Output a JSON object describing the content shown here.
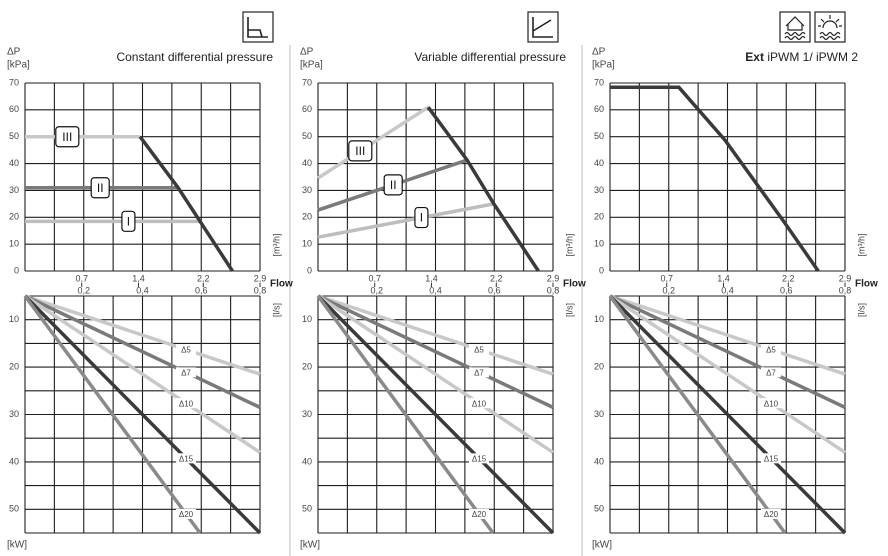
{
  "chart_data": [
    {
      "type": "line",
      "title": "Constant differential pressure",
      "ylabel": "ΔP",
      "yunit": "[kPa]",
      "xlabel": "Flow",
      "xunit": "[m³/h]",
      "x2unit": "[l/s]",
      "xlim": [
        0,
        2.9
      ],
      "xticks": [
        {
          "value": 0.7,
          "label": "0,7"
        },
        {
          "value": 1.4,
          "label": "1,4"
        },
        {
          "value": 2.2,
          "label": "2,2"
        },
        {
          "value": 2.9,
          "label": "2,9"
        }
      ],
      "x2lim": [
        0,
        0.8
      ],
      "x2ticks": [
        {
          "value": 0.2,
          "label": "0,2"
        },
        {
          "value": 0.4,
          "label": "0,4"
        },
        {
          "value": 0.6,
          "label": "0,6"
        },
        {
          "value": 0.8,
          "label": "0,8"
        }
      ],
      "xgrid": [
        0,
        0.3625,
        0.725,
        1.0875,
        1.45,
        1.8125,
        2.175,
        2.5375,
        2.9
      ],
      "ylim": [
        0,
        70
      ],
      "yticks": [
        0,
        10,
        20,
        30,
        40,
        50,
        60,
        70
      ],
      "series": [
        {
          "name": "III",
          "color": "#c8c8c8",
          "x": [
            0,
            1.42
          ],
          "values": [
            50,
            50
          ]
        },
        {
          "name": "II",
          "color": "#7a7a7a",
          "x": [
            0,
            1.89
          ],
          "values": [
            31,
            31
          ]
        },
        {
          "name": "I",
          "color": "#bdbdbd",
          "x": [
            0,
            2.16
          ],
          "values": [
            18.5,
            18.5
          ]
        },
        {
          "color": "#3a3a3a",
          "x": [
            1.42,
            1.89,
            2.16,
            2.56
          ],
          "values": [
            50,
            31,
            18.5,
            0
          ]
        }
      ]
    },
    {
      "type": "line",
      "ylabel": "[kW]",
      "xlim": [
        0,
        2.9
      ],
      "xgrid": [
        0,
        0.3625,
        0.725,
        1.0875,
        1.45,
        1.8125,
        2.175,
        2.5375,
        2.9
      ],
      "ylim": [
        5,
        55
      ],
      "y_inverted": true,
      "yticks": [
        10,
        20,
        30,
        40,
        50
      ],
      "ygrid": [
        5,
        10,
        15,
        20,
        25,
        30,
        35,
        40,
        45,
        50,
        55
      ],
      "series": [
        {
          "name": "Δ5",
          "color": "#c8c8c8",
          "x": [
            0,
            2.9
          ],
          "values": [
            5,
            21.5
          ]
        },
        {
          "name": "Δ7",
          "color": "#7a7a7a",
          "x": [
            0,
            2.9
          ],
          "values": [
            5,
            28.5
          ]
        },
        {
          "name": "Δ10",
          "color": "#c8c8c8",
          "x": [
            0,
            2.9
          ],
          "values": [
            5,
            38
          ]
        },
        {
          "name": "Δ15",
          "color": "#3a3a3a",
          "x": [
            0,
            2.9
          ],
          "values": [
            5,
            55
          ]
        },
        {
          "name": "Δ20",
          "color": "#8a8a8a",
          "x": [
            0,
            2.16
          ],
          "values": [
            5,
            55
          ]
        }
      ]
    },
    {
      "type": "line",
      "title": "Variable differential pressure",
      "ylabel": "ΔP",
      "yunit": "[kPa]",
      "xlabel": "Flow",
      "xunit": "[m³/h]",
      "x2unit": "[l/s]",
      "xlim": [
        0,
        2.9
      ],
      "xticks": [
        {
          "value": 0.7,
          "label": "0,7"
        },
        {
          "value": 1.4,
          "label": "1,4"
        },
        {
          "value": 2.2,
          "label": "2,2"
        },
        {
          "value": 2.9,
          "label": "2,9"
        }
      ],
      "x2lim": [
        0,
        0.8
      ],
      "x2ticks": [
        {
          "value": 0.2,
          "label": "0,2"
        },
        {
          "value": 0.4,
          "label": "0,4"
        },
        {
          "value": 0.6,
          "label": "0,6"
        },
        {
          "value": 0.8,
          "label": "0,8"
        }
      ],
      "xgrid": [
        0,
        0.3625,
        0.725,
        1.0875,
        1.45,
        1.8125,
        2.175,
        2.5375,
        2.9
      ],
      "ylim": [
        0,
        70
      ],
      "yticks": [
        0,
        10,
        20,
        30,
        40,
        50,
        60,
        70
      ],
      "series": [
        {
          "name": "III",
          "color": "#c8c8c8",
          "x": [
            0,
            1.36
          ],
          "values": [
            34.6,
            61
          ]
        },
        {
          "name": "II",
          "color": "#7a7a7a",
          "x": [
            0,
            1.84
          ],
          "values": [
            22.7,
            41.3
          ]
        },
        {
          "name": "I",
          "color": "#bdbdbd",
          "x": [
            0,
            2.17
          ],
          "values": [
            12.6,
            25
          ]
        },
        {
          "color": "#3a3a3a",
          "x": [
            1.36,
            1.84,
            2.17,
            2.72
          ],
          "values": [
            61,
            41.3,
            25,
            0
          ]
        }
      ]
    },
    {
      "type": "line",
      "ylabel": "[kW]",
      "xlim": [
        0,
        2.9
      ],
      "xgrid": [
        0,
        0.3625,
        0.725,
        1.0875,
        1.45,
        1.8125,
        2.175,
        2.5375,
        2.9
      ],
      "ylim": [
        5,
        55
      ],
      "y_inverted": true,
      "yticks": [
        10,
        20,
        30,
        40,
        50
      ],
      "ygrid": [
        5,
        10,
        15,
        20,
        25,
        30,
        35,
        40,
        45,
        50,
        55
      ],
      "series": [
        {
          "name": "Δ5",
          "color": "#c8c8c8",
          "x": [
            0,
            2.9
          ],
          "values": [
            5,
            21.5
          ]
        },
        {
          "name": "Δ7",
          "color": "#7a7a7a",
          "x": [
            0,
            2.9
          ],
          "values": [
            5,
            28.5
          ]
        },
        {
          "name": "Δ10",
          "color": "#c8c8c8",
          "x": [
            0,
            2.9
          ],
          "values": [
            5,
            38
          ]
        },
        {
          "name": "Δ15",
          "color": "#3a3a3a",
          "x": [
            0,
            2.9
          ],
          "values": [
            5,
            55
          ]
        },
        {
          "name": "Δ20",
          "color": "#8a8a8a",
          "x": [
            0,
            2.16
          ],
          "values": [
            5,
            55
          ]
        }
      ]
    },
    {
      "type": "line",
      "title_prefix": "Ext",
      "title": "iPWM 1/ iPWM 2",
      "ylabel": "ΔP",
      "yunit": "[kPa]",
      "xlabel": "Flow",
      "xunit": "[m³/h]",
      "x2unit": "[l/s]",
      "xlim": [
        0,
        2.9
      ],
      "xticks": [
        {
          "value": 0.7,
          "label": "0,7"
        },
        {
          "value": 1.4,
          "label": "1,4"
        },
        {
          "value": 2.2,
          "label": "2,2"
        },
        {
          "value": 2.9,
          "label": "2,9"
        }
      ],
      "x2lim": [
        0,
        0.8
      ],
      "x2ticks": [
        {
          "value": 0.2,
          "label": "0,2"
        },
        {
          "value": 0.4,
          "label": "0,4"
        },
        {
          "value": 0.6,
          "label": "0,6"
        },
        {
          "value": 0.8,
          "label": "0,8"
        }
      ],
      "xgrid": [
        0,
        0.3625,
        0.725,
        1.0875,
        1.45,
        1.8125,
        2.175,
        2.5375,
        2.9
      ],
      "ylim": [
        0,
        70
      ],
      "yticks": [
        0,
        10,
        20,
        30,
        40,
        50,
        60,
        70
      ],
      "series": [
        {
          "color": "#3a3a3a",
          "x": [
            0,
            0.85,
            1.42,
            2.15,
            2.57
          ],
          "values": [
            68.4,
            68.4,
            48.7,
            18.2,
            0
          ]
        }
      ]
    },
    {
      "type": "line",
      "ylabel": "[kW]",
      "xlim": [
        0,
        2.9
      ],
      "xgrid": [
        0,
        0.3625,
        0.725,
        1.0875,
        1.45,
        1.8125,
        2.175,
        2.5375,
        2.9
      ],
      "ylim": [
        5,
        55
      ],
      "y_inverted": true,
      "yticks": [
        10,
        20,
        30,
        40,
        50
      ],
      "ygrid": [
        5,
        10,
        15,
        20,
        25,
        30,
        35,
        40,
        45,
        50,
        55
      ],
      "series": [
        {
          "name": "Δ5",
          "color": "#c8c8c8",
          "x": [
            0,
            2.9
          ],
          "values": [
            5,
            21.5
          ]
        },
        {
          "name": "Δ7",
          "color": "#7a7a7a",
          "x": [
            0,
            2.9
          ],
          "values": [
            5,
            28.5
          ]
        },
        {
          "name": "Δ10",
          "color": "#c8c8c8",
          "x": [
            0,
            2.9
          ],
          "values": [
            5,
            38
          ]
        },
        {
          "name": "Δ15",
          "color": "#3a3a3a",
          "x": [
            0,
            2.9
          ],
          "values": [
            5,
            55
          ]
        },
        {
          "name": "Δ20",
          "color": "#8a8a8a",
          "x": [
            0,
            2.16
          ],
          "values": [
            5,
            55
          ]
        }
      ]
    }
  ]
}
